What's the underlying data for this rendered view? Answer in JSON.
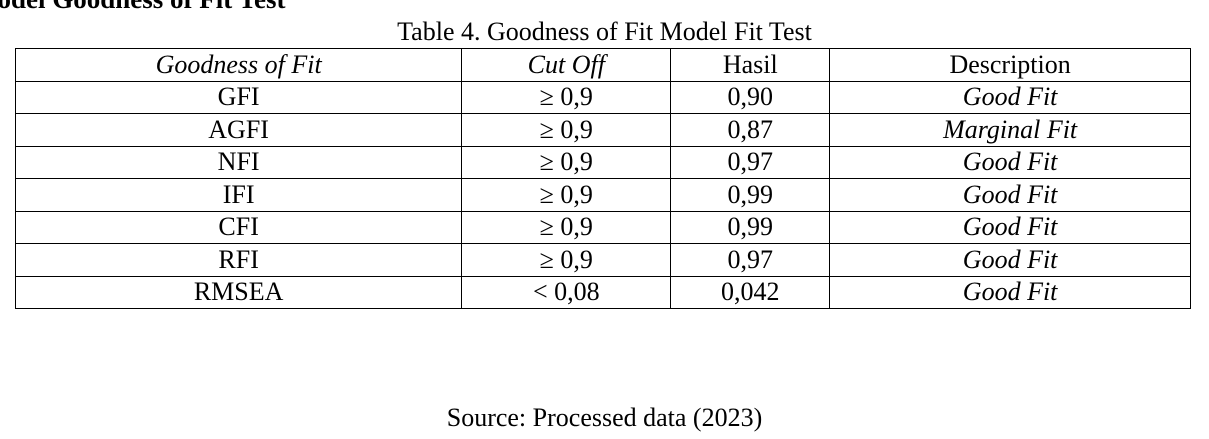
{
  "header": {
    "title": "Model Goodness of Fit Test"
  },
  "caption": "Table 4. Goodness of Fit Model Fit Test",
  "table": {
    "columns": [
      "Goodness of Fit",
      "Cut Off",
      "Hasil",
      "Description"
    ],
    "rows": [
      [
        "GFI",
        "≥ 0,9",
        "0,90",
        "Good Fit"
      ],
      [
        "AGFI",
        "≥ 0,9",
        "0,87",
        "Marginal Fit"
      ],
      [
        "NFI",
        "≥ 0,9",
        "0,97",
        "Good Fit"
      ],
      [
        "IFI",
        "≥ 0,9",
        "0,99",
        "Good Fit"
      ],
      [
        "CFI",
        "≥ 0,9",
        "0,99",
        "Good Fit"
      ],
      [
        "RFI",
        "≥ 0,9",
        "0,97",
        "Good Fit"
      ],
      [
        "RMSEA",
        "< 0,08",
        "0,042",
        "Good Fit"
      ]
    ]
  },
  "source": "Source: Processed data (2023)"
}
